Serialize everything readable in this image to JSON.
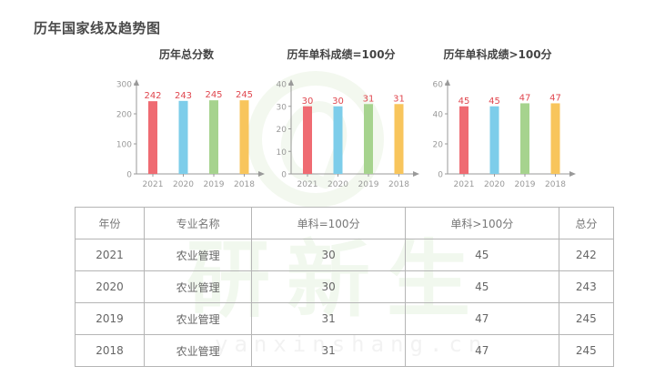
{
  "page": {
    "title": "历年国家线及趋势图",
    "watermark": {
      "text": "研新生",
      "url": "yanxinshang.cn"
    }
  },
  "colors": {
    "bars": [
      "#ef6b72",
      "#7dcdea",
      "#a6d38e",
      "#f8c55c"
    ],
    "value_label": "#e0474f",
    "axis": "#999999"
  },
  "chart_data": [
    {
      "type": "bar",
      "title": "历年总分数",
      "categories": [
        "2021",
        "2020",
        "2019",
        "2018"
      ],
      "values": [
        242,
        243,
        245,
        245
      ],
      "xlabel": "",
      "ylabel": "",
      "ylim": [
        0,
        300
      ],
      "yticks": [
        0,
        100,
        200,
        300
      ],
      "grid": false,
      "legend": null
    },
    {
      "type": "bar",
      "title": "历年单科成绩=100分",
      "categories": [
        "2021",
        "2020",
        "2019",
        "2018"
      ],
      "values": [
        30,
        30,
        31,
        31
      ],
      "xlabel": "",
      "ylabel": "",
      "ylim": [
        0,
        40
      ],
      "yticks": [
        0,
        10,
        20,
        30,
        40
      ],
      "grid": false,
      "legend": null
    },
    {
      "type": "bar",
      "title": "历年单科成绩>100分",
      "categories": [
        "2021",
        "2020",
        "2019",
        "2018"
      ],
      "values": [
        45,
        45,
        47,
        47
      ],
      "xlabel": "",
      "ylabel": "",
      "ylim": [
        0,
        60
      ],
      "yticks": [
        0,
        20,
        40,
        60
      ],
      "grid": false,
      "legend": null
    }
  ],
  "table": {
    "headers": [
      "年份",
      "专业名称",
      "单科=100分",
      "单科>100分",
      "总分"
    ],
    "rows": [
      [
        "2021",
        "农业管理",
        "30",
        "45",
        "242"
      ],
      [
        "2020",
        "农业管理",
        "30",
        "45",
        "243"
      ],
      [
        "2019",
        "农业管理",
        "31",
        "47",
        "245"
      ],
      [
        "2018",
        "农业管理",
        "31",
        "47",
        "245"
      ]
    ]
  }
}
